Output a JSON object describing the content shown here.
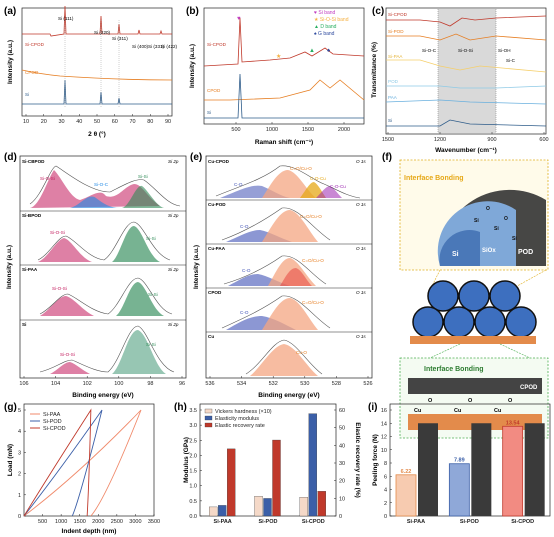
{
  "panels": {
    "a": {
      "label": "(a)",
      "xlabel": "2 θ (°)",
      "ylabel": "Intensity (a.u.)",
      "xticks": [
        "10",
        "20",
        "30",
        "40",
        "50",
        "60",
        "70",
        "80",
        "90"
      ],
      "peaks": [
        "Si (111)",
        "Si (220)",
        "Si (311)",
        "Si (400)",
        "Si (331)",
        "Si (422)"
      ],
      "series": [
        "Si-CPOD",
        "CPOD",
        "Si"
      ]
    },
    "b": {
      "label": "(b)",
      "xlabel": "Raman shift (cm⁻¹)",
      "ylabel": "Intensity (a.u.)",
      "xticks": [
        "500",
        "1000",
        "1500",
        "2000"
      ],
      "legend": [
        "Si band",
        "Si-O-Si band",
        "D band",
        "G band"
      ],
      "series": [
        "Si-CPOD",
        "CPOD",
        "Si"
      ]
    },
    "c": {
      "label": "(c)",
      "xlabel": "Wavenumber (cm⁻¹)",
      "ylabel": "Transmittance (%)",
      "xticks": [
        "1500",
        "1200",
        "900",
        "600"
      ],
      "bands": [
        "Si-O-C",
        "Si-O-Si",
        "Si-OH",
        "Si-C"
      ],
      "series": [
        "Si-CPOD",
        "Si-POD",
        "Si-PAA",
        "POD",
        "PAA",
        "Si"
      ]
    },
    "d": {
      "label": "(d)",
      "xlabel": "Binding energy (eV)",
      "ylabel": "Intensity (a.u.)",
      "xticks": [
        "106",
        "104",
        "102",
        "100",
        "98",
        "96"
      ],
      "subplots": [
        {
          "sample": "Si-CBPOD",
          "core": "Si 2p",
          "comps": [
            "Si-O-Si",
            "Si-O-C",
            "Si-Si",
            "Si-Si"
          ]
        },
        {
          "sample": "Si-BPOD",
          "core": "Si 2p",
          "comps": [
            "Si-O-Si",
            "Si-Si"
          ]
        },
        {
          "sample": "Si-PAA",
          "core": "Si 2p",
          "comps": [
            "Si-O-Si",
            "Si-Si"
          ]
        },
        {
          "sample": "Si",
          "core": "Si 2p",
          "comps": [
            "Si-O-Si",
            "Si-Si"
          ]
        }
      ]
    },
    "e": {
      "label": "(e)",
      "xlabel": "Binding energy (eV)",
      "ylabel": "Intensity (a.u.)",
      "xticks": [
        "536",
        "534",
        "532",
        "530",
        "528",
        "526"
      ],
      "subplots": [
        {
          "sample": "Cu-CPOD",
          "core": "O 1s",
          "comps": [
            "C-O",
            "C=O/Cu-O",
            "C-O-Cu",
            "C-O-Cu"
          ]
        },
        {
          "sample": "Cu-POD",
          "core": "O 1s",
          "comps": [
            "C-O",
            "C=O/Cu-O"
          ]
        },
        {
          "sample": "Cu-PAA",
          "core": "O 1s",
          "comps": [
            "C-O",
            "C=O/Cu-O"
          ]
        },
        {
          "sample": "CPOD",
          "core": "O 1s",
          "comps": [
            "C-O",
            "C=O/Cu-O"
          ]
        },
        {
          "sample": "Cu",
          "core": "O 1s",
          "comps": [
            "Cu-O"
          ]
        }
      ]
    },
    "f": {
      "label": "(f)",
      "top_title": "Interface Bonding",
      "bottom_title": "Interface Bonding",
      "labels_top": [
        "Si",
        "Si",
        "SiOx",
        "POD",
        "O",
        "Si",
        "O",
        "Si"
      ],
      "labels_bottom": [
        "CPOD",
        "Cu",
        "Cu",
        "Cu",
        "O",
        "O",
        "O"
      ]
    },
    "g": {
      "label": "(g)",
      "xlabel": "Indent depth (nm)",
      "ylabel": "Load (mN)",
      "xticks": [
        "500",
        "1000",
        "1500",
        "2000",
        "2500",
        "3000",
        "3500"
      ],
      "yticks": [
        "0",
        "1",
        "2",
        "3",
        "4",
        "5"
      ],
      "legend": [
        "Si-PAA",
        "Si-POD",
        "Si-CPOD"
      ]
    },
    "h": {
      "label": "(h)",
      "ylabel": "Modulus (GPa)",
      "y2label": "Elastic recovery rate (%)",
      "yticks": [
        "0.0",
        "0.5",
        "1.0",
        "1.5",
        "2.0",
        "2.5",
        "3.0",
        "3.5"
      ],
      "y2ticks": [
        "0",
        "10",
        "20",
        "30",
        "40",
        "50",
        "60"
      ],
      "legend": [
        "Vickers hardness (×10)",
        "Elasticity modulus",
        "Elastic recovery rate"
      ]
    },
    "i": {
      "label": "(i)",
      "ylabel": "Peeling force (N)",
      "yticks": [
        "0",
        "2",
        "4",
        "6",
        "8",
        "10",
        "12",
        "14",
        "16"
      ]
    }
  },
  "chart_data": [
    {
      "type": "bar",
      "panel": "h",
      "categories": [
        "Si-PAA",
        "Si-POD",
        "Si-CPOD"
      ],
      "series": [
        {
          "name": "Vickers hardness (×10)",
          "values": [
            0.3,
            0.65,
            0.62
          ]
        },
        {
          "name": "Elasticity modulus",
          "values": [
            0.35,
            0.58,
            3.38
          ]
        },
        {
          "name": "Elastic recovery rate",
          "values": [
            38,
            43,
            14
          ]
        }
      ],
      "ylim": [
        0,
        3.5
      ],
      "y2lim": [
        0,
        60
      ]
    },
    {
      "type": "bar",
      "panel": "i",
      "categories": [
        "Si-PAA",
        "Si-POD",
        "Si-CPOD"
      ],
      "values": [
        6.22,
        7.89,
        13.54
      ],
      "labels": [
        "6.22",
        "7.89",
        "13.54"
      ],
      "ylim": [
        0,
        16
      ]
    },
    {
      "type": "line",
      "panel": "g",
      "series": [
        {
          "name": "Si-PAA",
          "loading": [
            [
              0,
              0
            ],
            [
              1500,
              2
            ],
            [
              2700,
              4
            ],
            [
              3150,
              5
            ]
          ],
          "unloading": [
            [
              3150,
              5
            ],
            [
              2200,
              0.8
            ],
            [
              1800,
              0
            ]
          ]
        },
        {
          "name": "Si-POD",
          "loading": [
            [
              0,
              0
            ],
            [
              900,
              2
            ],
            [
              1800,
              4
            ],
            [
              2100,
              5
            ]
          ],
          "unloading": [
            [
              2100,
              5
            ],
            [
              1500,
              0.8
            ],
            [
              1300,
              0
            ]
          ]
        },
        {
          "name": "Si-CPOD",
          "loading": [
            [
              0,
              0
            ],
            [
              700,
              2
            ],
            [
              1400,
              4
            ],
            [
              1800,
              5
            ]
          ],
          "unloading": [
            [
              1800,
              5
            ],
            [
              1750,
              1.5
            ],
            [
              1700,
              0
            ]
          ]
        }
      ],
      "xlim": [
        0,
        3500
      ],
      "ylim": [
        0,
        5
      ]
    }
  ]
}
